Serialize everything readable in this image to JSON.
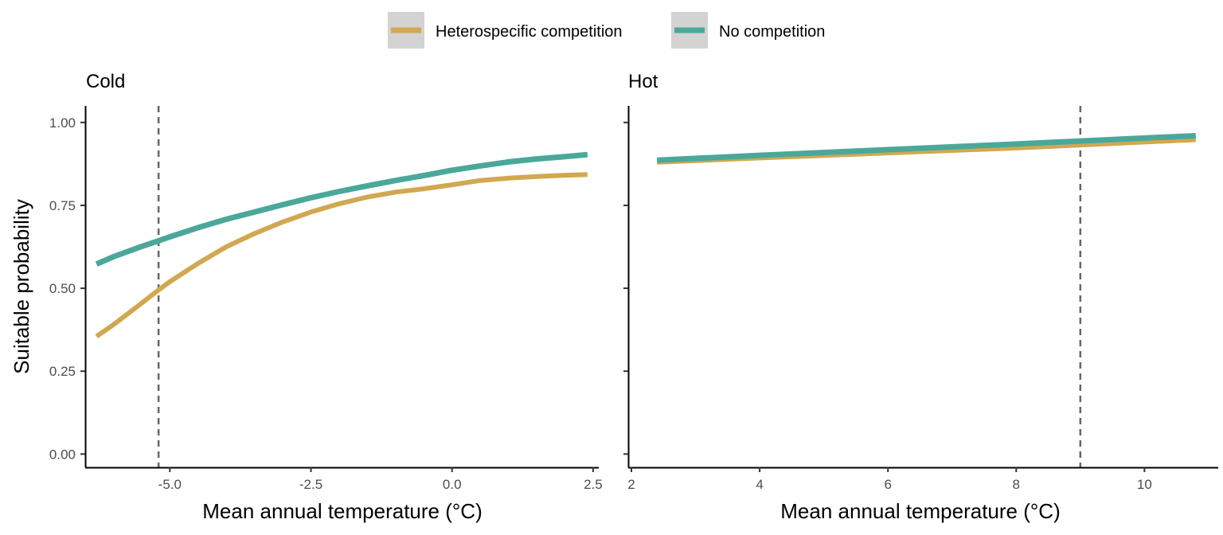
{
  "chart_data": {
    "type": "line",
    "ylabel": "Suitable probability",
    "legend": {
      "placement": "top",
      "entries": [
        {
          "name": "Heterospecific competition",
          "color": "#D1A850"
        },
        {
          "name": "No competition",
          "color": "#4AA89A"
        }
      ]
    },
    "panels": [
      {
        "title": "Cold",
        "xlabel": "Mean annual temperature (°C)",
        "xlim": [
          -6.5,
          2.6
        ],
        "ylim": [
          -0.04,
          1.05
        ],
        "xticks": [
          -5.0,
          -2.5,
          0.0,
          2.5
        ],
        "xtick_labels": [
          "-5.0",
          "-2.5",
          "0.0",
          "2.5"
        ],
        "yticks": [
          0.0,
          0.25,
          0.5,
          0.75,
          1.0
        ],
        "ytick_labels": [
          "0.00",
          "0.25",
          "0.50",
          "0.75",
          "1.00"
        ],
        "vline": -5.2,
        "series": [
          {
            "name": "Heterospecific competition",
            "x": [
              -6.3,
              -6.0,
              -5.5,
              -5.2,
              -5.0,
              -4.5,
              -4.0,
              -3.5,
              -3.0,
              -2.5,
              -2.0,
              -1.5,
              -1.0,
              -0.5,
              0.0,
              0.5,
              1.0,
              1.5,
              2.0,
              2.4
            ],
            "y": [
              0.355,
              0.39,
              0.455,
              0.495,
              0.52,
              0.575,
              0.625,
              0.665,
              0.7,
              0.73,
              0.755,
              0.775,
              0.79,
              0.8,
              0.812,
              0.825,
              0.832,
              0.837,
              0.841,
              0.843
            ]
          },
          {
            "name": "No competition",
            "x": [
              -6.3,
              -6.0,
              -5.5,
              -5.2,
              -5.0,
              -4.5,
              -4.0,
              -3.5,
              -3.0,
              -2.5,
              -2.0,
              -1.5,
              -1.0,
              -0.5,
              0.0,
              0.5,
              1.0,
              1.5,
              2.0,
              2.4
            ],
            "y": [
              0.573,
              0.595,
              0.626,
              0.643,
              0.655,
              0.683,
              0.708,
              0.73,
              0.752,
              0.773,
              0.792,
              0.809,
              0.825,
              0.84,
              0.856,
              0.869,
              0.881,
              0.89,
              0.897,
              0.903
            ]
          }
        ]
      },
      {
        "title": "Hot",
        "xlabel": "Mean annual temperature (°C)",
        "xlim": [
          1.95,
          11.15
        ],
        "ylim": [
          -0.04,
          1.05
        ],
        "xticks": [
          2,
          4,
          6,
          8,
          10
        ],
        "xtick_labels": [
          "2",
          "4",
          "6",
          "8",
          "10"
        ],
        "yticks": [
          0.0,
          0.25,
          0.5,
          0.75,
          1.0
        ],
        "ytick_labels": [
          "",
          "",
          "",
          "",
          ""
        ],
        "vline": 9.0,
        "series": [
          {
            "name": "Heterospecific competition",
            "x": [
              2.4,
              4.0,
              6.0,
              8.0,
              10.0,
              10.8
            ],
            "y": [
              0.88,
              0.893,
              0.908,
              0.923,
              0.941,
              0.948
            ]
          },
          {
            "name": "No competition",
            "x": [
              2.4,
              4.0,
              6.0,
              8.0,
              10.0,
              10.8
            ],
            "y": [
              0.886,
              0.901,
              0.918,
              0.935,
              0.953,
              0.96
            ]
          }
        ]
      }
    ]
  }
}
